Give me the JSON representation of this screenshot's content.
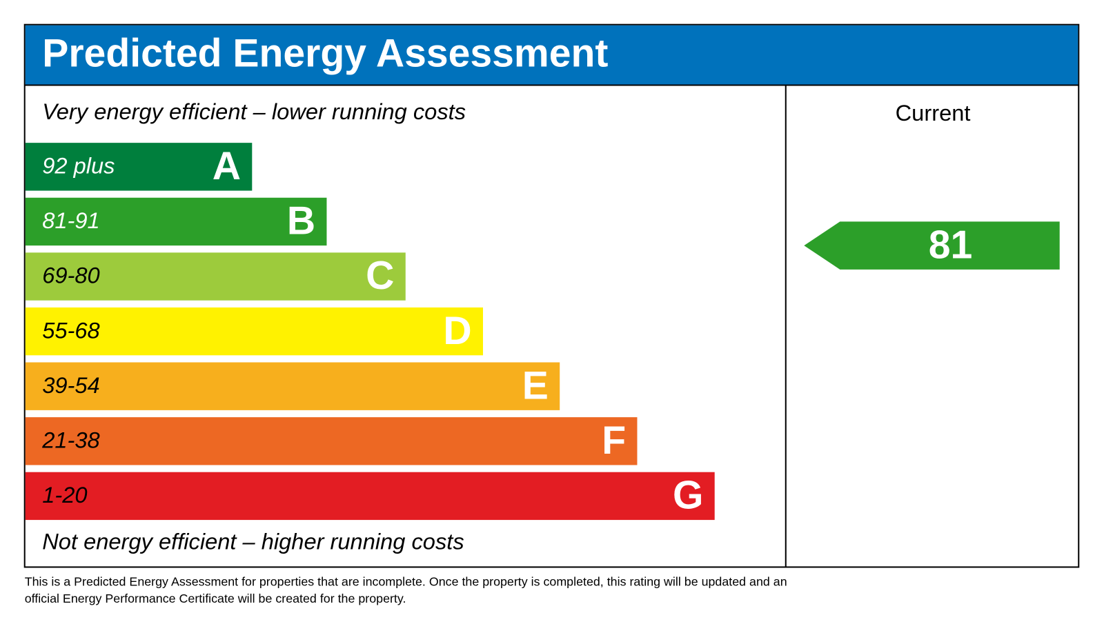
{
  "title": "Predicted Energy Assessment",
  "top_note": "Very energy efficient – lower running costs",
  "bottom_note": "Not energy efficient – higher running costs",
  "bands": [
    {
      "range": "92 plus",
      "letter": "A",
      "color": "#007f3d",
      "text_color": "#ffffff"
    },
    {
      "range": "81-91",
      "letter": "B",
      "color": "#2c9f29",
      "text_color": "#ffffff"
    },
    {
      "range": "69-80",
      "letter": "C",
      "color": "#9dcb3c",
      "text_color": "#000000"
    },
    {
      "range": "55-68",
      "letter": "D",
      "color": "#fff200",
      "text_color": "#000000"
    },
    {
      "range": "39-54",
      "letter": "E",
      "color": "#f7af1d",
      "text_color": "#000000"
    },
    {
      "range": "21-38",
      "letter": "F",
      "color": "#ed6823",
      "text_color": "#000000"
    },
    {
      "range": "1-20",
      "letter": "G",
      "color": "#e31d23",
      "text_color": "#000000"
    }
  ],
  "current": {
    "label": "Current",
    "value": 81,
    "color": "#2c9f29"
  },
  "footnote": [
    "This is a Predicted Energy Assessment for properties that are incomplete. Once the property is completed, this rating will be updated and an",
    "official Energy Performance Certificate will be created for the property."
  ]
}
